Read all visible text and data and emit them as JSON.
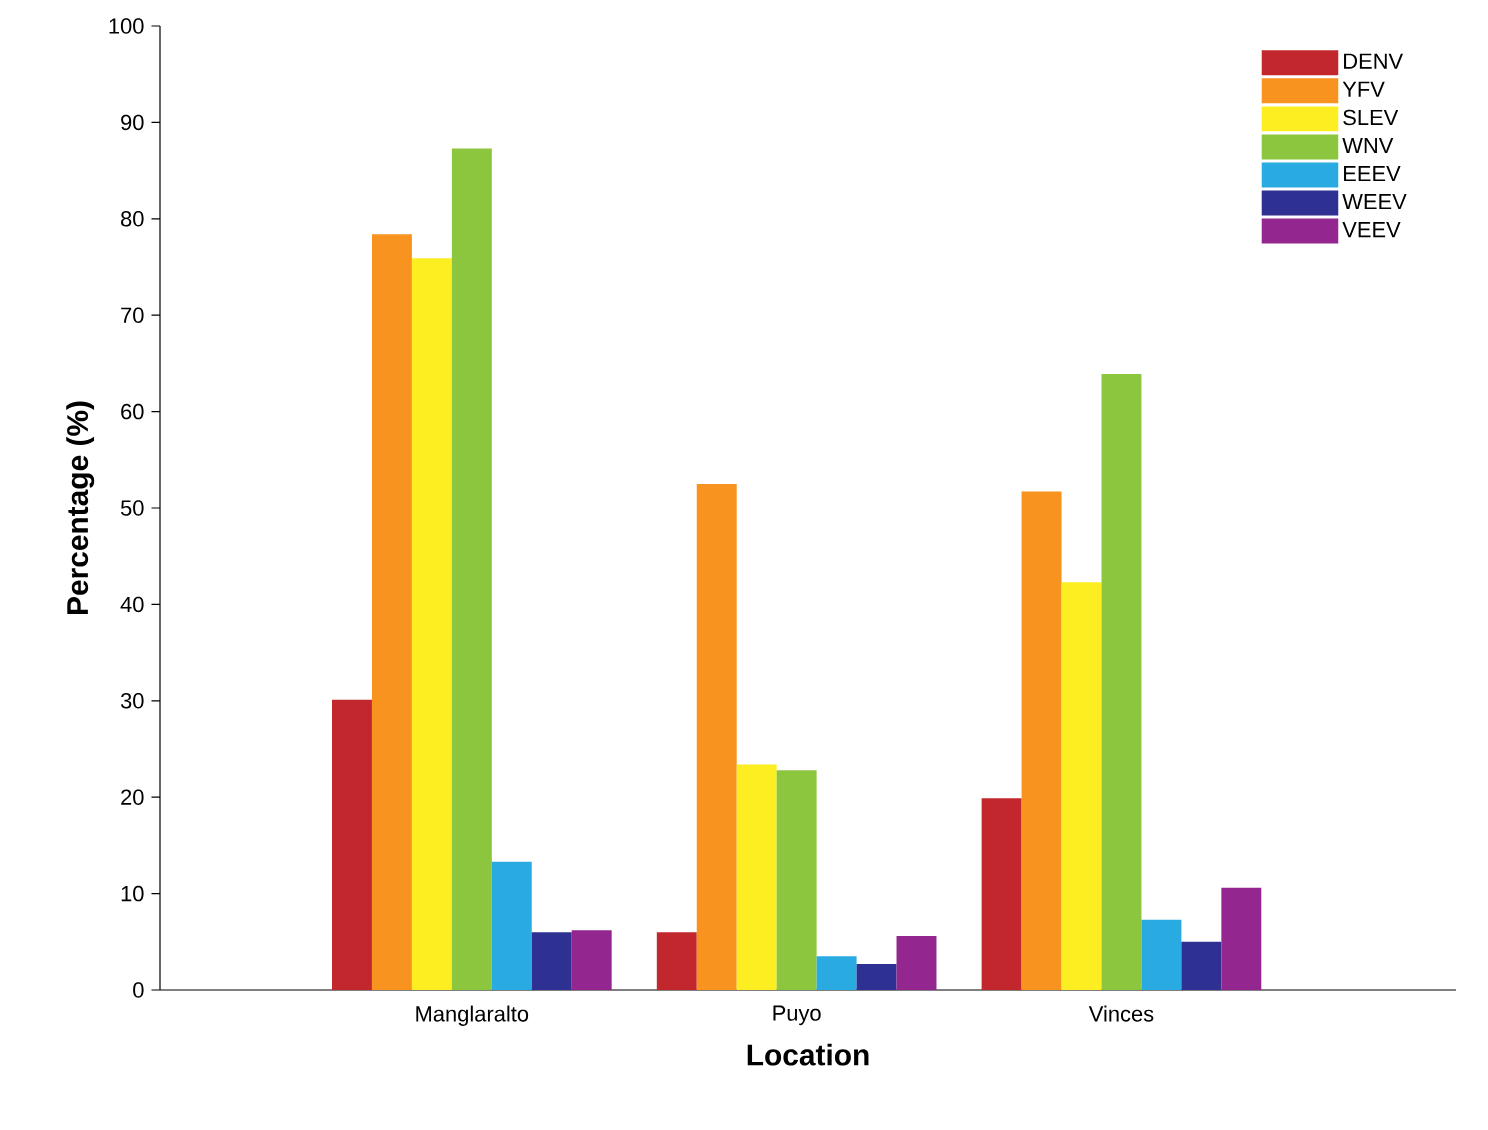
{
  "chart_data": {
    "type": "bar",
    "xlabel": "Location",
    "ylabel": "Percentage (%)",
    "categories": [
      "Manglaralto",
      "Puyo",
      "Vinces"
    ],
    "series": [
      {
        "name": "DENV",
        "color": "#c1272d",
        "values": [
          30.1,
          6.0,
          19.9
        ]
      },
      {
        "name": "YFV",
        "color": "#f7931e",
        "values": [
          78.4,
          52.5,
          51.7
        ]
      },
      {
        "name": "SLEV",
        "color": "#fcee21",
        "values": [
          75.9,
          23.4,
          42.3
        ]
      },
      {
        "name": "WNV",
        "color": "#8cc63f",
        "values": [
          87.3,
          22.8,
          63.9
        ]
      },
      {
        "name": "EEEV",
        "color": "#29abe2",
        "values": [
          13.3,
          3.5,
          7.3
        ]
      },
      {
        "name": "WEEV",
        "color": "#2e3192",
        "values": [
          6.0,
          2.7,
          5.0
        ]
      },
      {
        "name": "VEEV",
        "color": "#93278f",
        "values": [
          6.2,
          5.6,
          10.6
        ]
      }
    ],
    "ylim": [
      0,
      100
    ],
    "yticks": [
      0,
      10,
      20,
      30,
      40,
      50,
      60,
      70,
      80,
      90,
      100
    ],
    "legend": "top right",
    "grid": false
  }
}
